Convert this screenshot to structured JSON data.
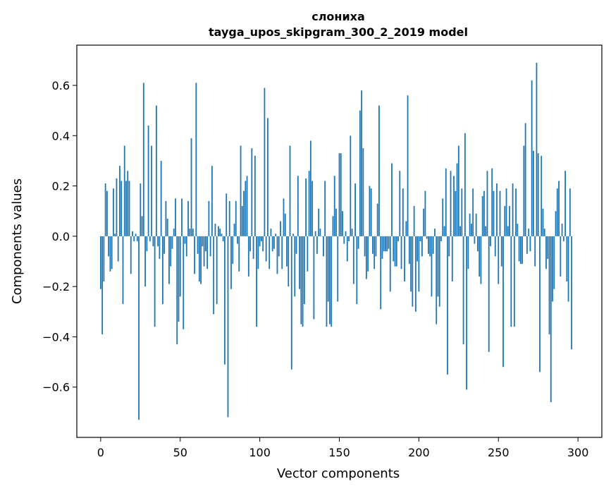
{
  "chart_data": {
    "type": "bar",
    "title": "слониха",
    "subtitle": "tayga_upos_skipgram_300_2_2019 model",
    "xlabel": "Vector components",
    "ylabel": "Components values",
    "xlim": [
      -15,
      315
    ],
    "ylim": [
      -0.8,
      0.76
    ],
    "xticks": [
      0,
      50,
      100,
      150,
      200,
      250,
      300
    ],
    "yticks": [
      -0.6,
      -0.4,
      -0.2,
      0.0,
      0.2,
      0.4,
      0.6
    ],
    "ytick_labels": [
      "−0.6",
      "−0.4",
      "−0.2",
      "0.0",
      "0.2",
      "0.4",
      "0.6"
    ],
    "xtick_labels": [
      "0",
      "50",
      "100",
      "150",
      "200",
      "250",
      "300"
    ],
    "bar_color": "#1f77b4",
    "grid": false,
    "values": [
      -0.21,
      -0.39,
      -0.18,
      0.21,
      0.18,
      -0.08,
      -0.14,
      -0.13,
      0.19,
      0.01,
      0.23,
      -0.1,
      0.28,
      0.22,
      -0.27,
      0.36,
      0.22,
      0.26,
      0.22,
      -0.15,
      0.02,
      -0.02,
      0.01,
      -0.02,
      -0.73,
      0.21,
      0.08,
      0.61,
      -0.2,
      -0.06,
      0.44,
      -0.02,
      0.36,
      -0.04,
      -0.36,
      0.52,
      -0.04,
      -0.09,
      0.3,
      -0.27,
      -0.07,
      0.14,
      0.07,
      -0.19,
      -0.12,
      -0.05,
      0.03,
      0.15,
      -0.43,
      -0.34,
      -0.24,
      0.15,
      -0.37,
      -0.03,
      -0.08,
      0.14,
      0.03,
      0.39,
      0.03,
      -0.15,
      0.61,
      -0.07,
      -0.18,
      -0.19,
      -0.04,
      -0.12,
      -0.06,
      -0.13,
      0.14,
      -0.08,
      0.28,
      -0.31,
      0.05,
      -0.27,
      0.04,
      0.03,
      0.01,
      -0.02,
      -0.51,
      0.17,
      -0.72,
      0.14,
      -0.21,
      -0.11,
      0.05,
      0.14,
      -0.03,
      -0.14,
      0.36,
      0.12,
      0.18,
      0.22,
      0.24,
      -0.16,
      -0.06,
      0.35,
      -0.09,
      0.32,
      -0.36,
      -0.13,
      -0.04,
      -0.02,
      -0.06,
      0.59,
      -0.1,
      0.47,
      -0.13,
      0.03,
      -0.06,
      -0.05,
      0.01,
      -0.15,
      -0.08,
      0.06,
      -0.13,
      0.15,
      0.09,
      -0.12,
      -0.2,
      0.36,
      -0.53,
      0.01,
      -0.24,
      -0.07,
      0.24,
      -0.21,
      -0.35,
      -0.36,
      -0.27,
      0.23,
      -0.14,
      0.26,
      0.38,
      0.22,
      -0.33,
      0.02,
      -0.07,
      0.11,
      0.03,
      0.0,
      -0.08,
      0.22,
      -0.36,
      -0.26,
      -0.35,
      -0.36,
      0.08,
      0.24,
      0.11,
      -0.26,
      0.33,
      0.33,
      0.1,
      -0.03,
      0.02,
      -0.1,
      -0.02,
      0.4,
      0.03,
      -0.19,
      0.21,
      -0.27,
      -0.05,
      0.5,
      0.58,
      0.35,
      -0.08,
      -0.17,
      -0.14,
      0.2,
      0.19,
      -0.07,
      -0.13,
      -0.08,
      0.13,
      0.52,
      -0.29,
      -0.09,
      -0.06,
      -0.06,
      -0.06,
      -0.05,
      -0.22,
      0.29,
      -0.1,
      -0.12,
      -0.12,
      -0.02,
      0.26,
      -0.13,
      0.19,
      -0.18,
      0.06,
      0.56,
      -0.11,
      -0.22,
      -0.28,
      0.12,
      -0.3,
      -0.1,
      -0.22,
      -0.02,
      -0.08,
      0.11,
      0.18,
      -0.01,
      -0.07,
      -0.08,
      -0.24,
      -0.07,
      0.03,
      -0.35,
      -0.24,
      -0.28,
      -0.02,
      0.15,
      0.04,
      0.27,
      -0.55,
      -0.08,
      0.26,
      -0.18,
      0.24,
      0.18,
      0.29,
      0.36,
      0.04,
      0.19,
      -0.43,
      0.41,
      -0.61,
      -0.13,
      0.09,
      0.05,
      0.19,
      -0.03,
      0.09,
      -0.06,
      -0.16,
      -0.19,
      0.16,
      0.18,
      0.04,
      0.26,
      -0.46,
      -0.04,
      0.27,
      0.18,
      -0.08,
      0.21,
      -0.19,
      0.18,
      -0.12,
      -0.52,
      0.12,
      0.19,
      0.04,
      0.12,
      -0.36,
      0.21,
      -0.36,
      0.19,
      0.05,
      -0.1,
      -0.11,
      -0.11,
      0.36,
      0.45,
      -0.07,
      0.03,
      -0.06,
      0.62,
      0.34,
      -0.12,
      0.69,
      0.33,
      -0.54,
      0.32,
      0.11,
      0.03,
      -0.13,
      -0.09,
      -0.39,
      -0.66,
      -0.26,
      -0.21,
      0.1,
      0.19,
      0.22,
      -0.16,
      0.05,
      -0.02,
      0.26,
      -0.18,
      -0.26,
      0.19,
      -0.45
    ]
  }
}
